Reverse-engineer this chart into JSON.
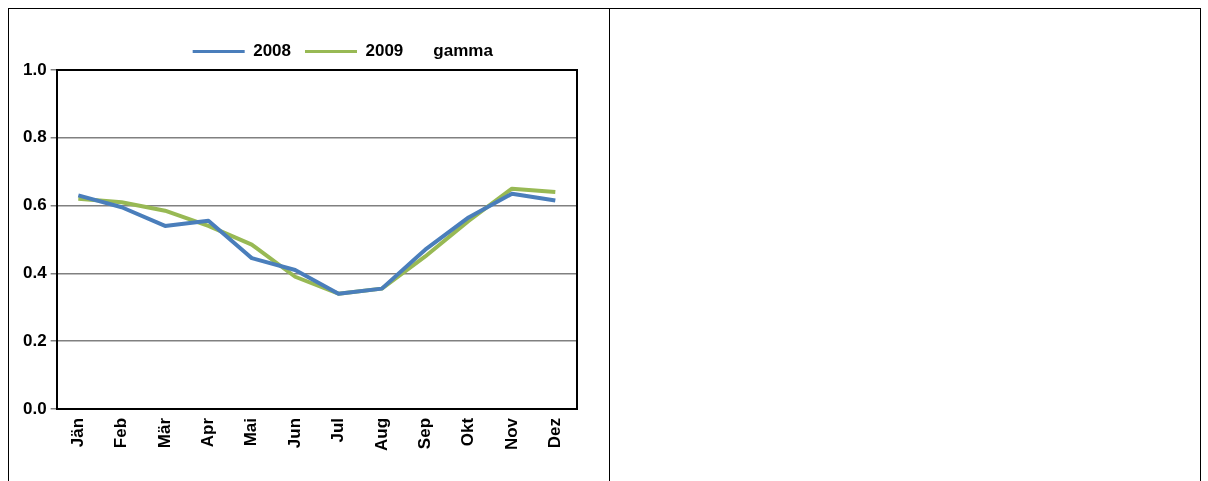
{
  "chart_data": {
    "type": "line",
    "title": "gamma",
    "categories": [
      "Jän",
      "Feb",
      "Mär",
      "Apr",
      "Mai",
      "Jun",
      "Jul",
      "Aug",
      "Sep",
      "Okt",
      "Nov",
      "Dez"
    ],
    "series": [
      {
        "name": "2008",
        "color": "#4a7ebb",
        "values": [
          0.63,
          0.595,
          0.54,
          0.555,
          0.445,
          0.41,
          0.34,
          0.355,
          0.47,
          0.565,
          0.635,
          0.615
        ]
      },
      {
        "name": "2009",
        "color": "#98b954",
        "values": [
          0.62,
          0.61,
          0.585,
          0.54,
          0.485,
          0.39,
          0.34,
          0.355,
          0.45,
          0.555,
          0.65,
          0.64
        ]
      }
    ],
    "ylim": [
      0,
      1
    ],
    "yticks": [
      {
        "value": 0,
        "label": "0.0"
      },
      0.2,
      0.4,
      0.6,
      0.8,
      {
        "value": 1,
        "label": "1.0"
      }
    ],
    "grid": "y",
    "legend": "top",
    "marker": "none",
    "line_style": "solid"
  }
}
